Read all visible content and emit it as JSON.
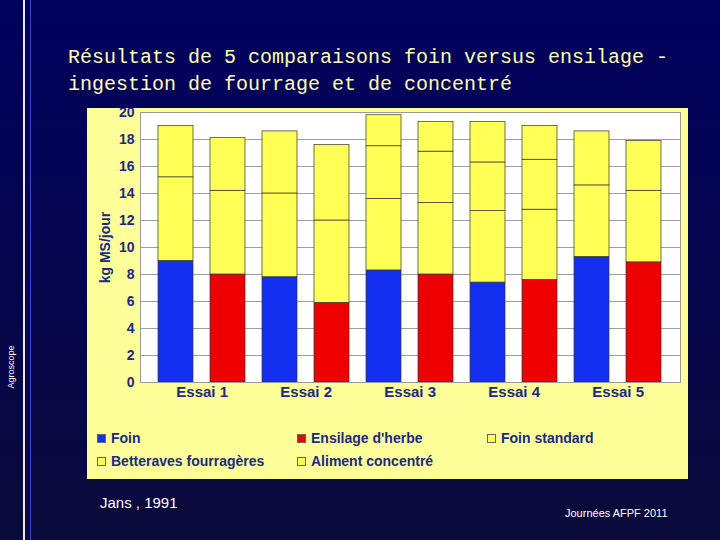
{
  "chart_data": {
    "type": "bar",
    "title": "Résultats de 5 comparaisons foin versus ensilage - ingestion de fourrage et de concentré",
    "ylabel": "kg MS/jour",
    "categories": [
      "Essai 1",
      "Essai 2",
      "Essai 3",
      "Essai 4",
      "Essai 5"
    ],
    "series": [
      {
        "name": "Foin",
        "color": "#1330f0",
        "values": [
          [
            9.0,
            null
          ],
          [
            7.8,
            null
          ],
          [
            8.3,
            null
          ],
          [
            7.4,
            null
          ],
          [
            9.3,
            null
          ]
        ]
      },
      {
        "name": "Ensilage d'herbe",
        "color": "#ee0000",
        "values": [
          [
            null,
            8.0
          ],
          [
            null,
            5.9
          ],
          [
            null,
            8.0
          ],
          [
            null,
            7.6
          ],
          [
            null,
            8.9
          ]
        ]
      },
      {
        "name": "Foin standard",
        "color": "#ffff55",
        "values": [
          [
            null,
            null
          ],
          [
            null,
            null
          ],
          [
            5.3,
            5.3
          ],
          [
            5.3,
            5.2
          ],
          [
            5.3,
            5.3
          ]
        ]
      },
      {
        "name": "Betteraves fourragères",
        "color": "#ffff55",
        "values": [
          [
            6.2,
            6.2
          ],
          [
            6.2,
            6.1
          ],
          [
            3.9,
            3.8
          ],
          [
            3.6,
            3.7
          ],
          [
            null,
            null
          ]
        ]
      },
      {
        "name": "Aliment concentré",
        "color": "#ffff55",
        "values": [
          [
            3.8,
            3.9
          ],
          [
            4.6,
            5.6
          ],
          [
            2.3,
            2.2
          ],
          [
            3.0,
            2.5
          ],
          [
            4.0,
            3.7
          ]
        ]
      }
    ],
    "stacked": true,
    "ylim": [
      0,
      20
    ],
    "yticks": [
      0,
      2,
      4,
      6,
      8,
      10,
      12,
      14,
      16,
      18,
      20
    ],
    "grid": true,
    "legend": "bottom",
    "annotations": [
      "Jans , 1991",
      "Journées AFPF 2011",
      "Agroscope"
    ]
  }
}
